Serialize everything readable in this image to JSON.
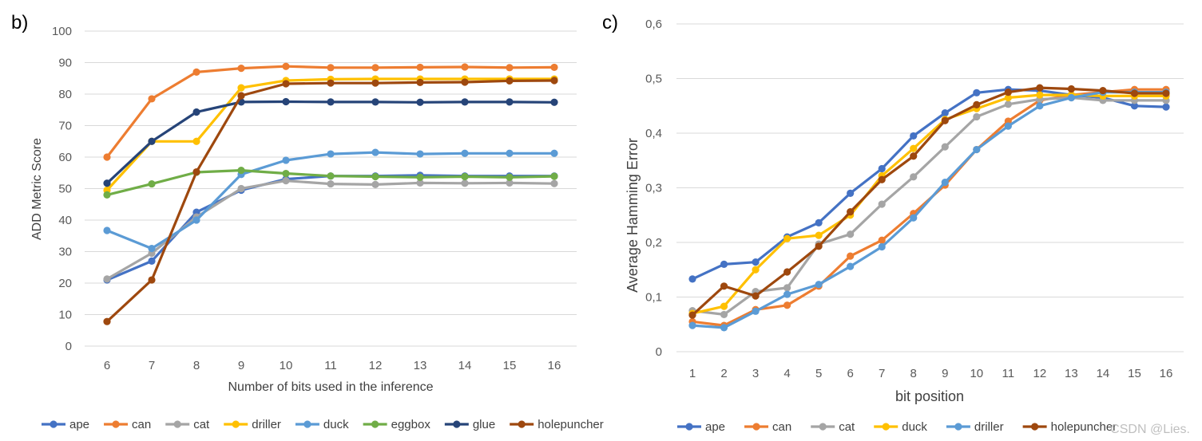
{
  "watermark": "CSDN @Lies.",
  "chart_data": [
    {
      "panel": "b)",
      "type": "line",
      "xlabel": "Number of bits used in the inference",
      "ylabel": "ADD Metric Score",
      "categories": [
        6,
        7,
        8,
        9,
        10,
        11,
        12,
        13,
        14,
        15,
        16
      ],
      "ylim": [
        0,
        100
      ],
      "yticks": [
        0,
        10,
        20,
        30,
        40,
        50,
        60,
        70,
        80,
        90,
        100
      ],
      "grid": true,
      "legend": "bottom",
      "series": [
        {
          "name": "ape",
          "color": "#4472c4",
          "values": [
            21,
            27,
            42.5,
            49.5,
            53,
            54,
            54,
            54.2,
            54,
            54,
            54
          ]
        },
        {
          "name": "can",
          "color": "#ed7d31",
          "values": [
            60,
            78.5,
            87,
            88.2,
            88.8,
            88.4,
            88.4,
            88.5,
            88.6,
            88.4,
            88.5
          ]
        },
        {
          "name": "cat",
          "color": "#a5a5a5",
          "values": [
            21.3,
            29.5,
            41,
            50,
            52.5,
            51.5,
            51.3,
            51.8,
            51.7,
            51.8,
            51.6
          ]
        },
        {
          "name": "driller",
          "color": "#ffc000",
          "values": [
            49.5,
            65,
            65,
            82,
            84.3,
            84.7,
            84.8,
            84.8,
            84.8,
            84.8,
            84.8
          ]
        },
        {
          "name": "duck",
          "color": "#5b9bd5",
          "values": [
            36.7,
            31,
            40,
            54.5,
            59,
            61,
            61.5,
            61,
            61.2,
            61.2,
            61.2
          ]
        },
        {
          "name": "eggbox",
          "color": "#70ad47",
          "values": [
            48,
            51.5,
            55.2,
            55.8,
            54.8,
            54,
            53.8,
            53.6,
            53.8,
            53.6,
            53.9
          ]
        },
        {
          "name": "glue",
          "color": "#264478",
          "values": [
            51.7,
            65,
            74.3,
            77.5,
            77.6,
            77.5,
            77.5,
            77.4,
            77.5,
            77.5,
            77.4
          ]
        },
        {
          "name": "holepuncher",
          "color": "#9e480e",
          "values": [
            7.8,
            21,
            55.3,
            79.5,
            83.3,
            83.5,
            83.5,
            83.7,
            83.8,
            84.2,
            84.3
          ]
        }
      ]
    },
    {
      "panel": "c)",
      "type": "line",
      "xlabel": "bit position",
      "ylabel": "Average Hamming Error",
      "categories": [
        1,
        2,
        3,
        4,
        5,
        6,
        7,
        8,
        9,
        10,
        11,
        12,
        13,
        14,
        15,
        16
      ],
      "ylim": [
        0,
        0.6
      ],
      "yticks": [
        "0",
        "0,1",
        "0,2",
        "0,3",
        "0,4",
        "0,5",
        "0,6"
      ],
      "ytick_values": [
        0,
        0.1,
        0.2,
        0.3,
        0.4,
        0.5,
        0.6
      ],
      "grid": true,
      "legend": "bottom",
      "series": [
        {
          "name": "ape",
          "color": "#4472c4",
          "values": [
            0.133,
            0.16,
            0.164,
            0.21,
            0.236,
            0.29,
            0.335,
            0.395,
            0.437,
            0.474,
            0.48,
            0.478,
            0.47,
            0.465,
            0.45,
            0.448
          ]
        },
        {
          "name": "can",
          "color": "#ed7d31",
          "values": [
            0.055,
            0.048,
            0.077,
            0.085,
            0.12,
            0.175,
            0.204,
            0.253,
            0.305,
            0.37,
            0.422,
            0.46,
            0.47,
            0.475,
            0.48,
            0.48
          ]
        },
        {
          "name": "cat",
          "color": "#a5a5a5",
          "values": [
            0.075,
            0.068,
            0.11,
            0.117,
            0.197,
            0.215,
            0.27,
            0.32,
            0.375,
            0.43,
            0.453,
            0.462,
            0.465,
            0.46,
            0.46,
            0.46
          ]
        },
        {
          "name": "duck",
          "color": "#ffc000",
          "values": [
            0.07,
            0.083,
            0.15,
            0.207,
            0.213,
            0.25,
            0.322,
            0.372,
            0.425,
            0.445,
            0.465,
            0.47,
            0.47,
            0.468,
            0.468,
            0.468
          ]
        },
        {
          "name": "driller",
          "color": "#5b9bd5",
          "values": [
            0.048,
            0.044,
            0.074,
            0.105,
            0.123,
            0.156,
            0.192,
            0.245,
            0.31,
            0.37,
            0.413,
            0.45,
            0.465,
            0.475,
            0.475,
            0.475
          ]
        },
        {
          "name": "holepuncher",
          "color": "#9e480e",
          "values": [
            0.067,
            0.12,
            0.102,
            0.146,
            0.193,
            0.256,
            0.315,
            0.358,
            0.423,
            0.452,
            0.475,
            0.483,
            0.481,
            0.478,
            0.473,
            0.473
          ]
        }
      ]
    }
  ]
}
